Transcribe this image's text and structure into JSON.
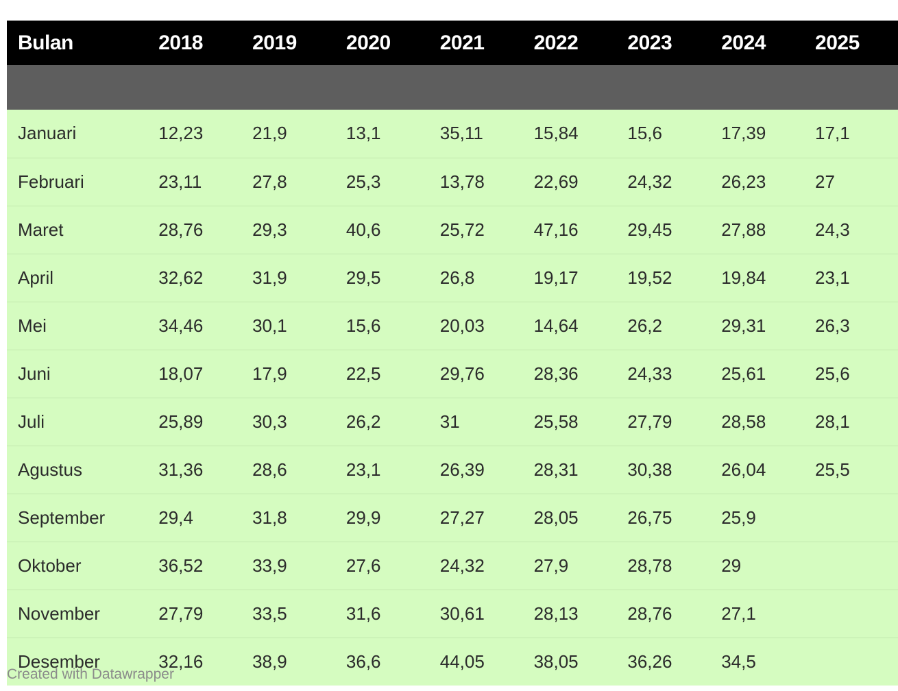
{
  "chart_data": {
    "type": "table",
    "columns": [
      "Bulan",
      "2018",
      "2019",
      "2020",
      "2021",
      "2022",
      "2023",
      "2024",
      "2025"
    ],
    "rows": [
      [
        "Januari",
        "12,23",
        "21,9",
        "13,1",
        "35,11",
        "15,84",
        "15,6",
        "17,39",
        "17,1"
      ],
      [
        "Februari",
        "23,11",
        "27,8",
        "25,3",
        "13,78",
        "22,69",
        "24,32",
        "26,23",
        "27"
      ],
      [
        "Maret",
        "28,76",
        "29,3",
        "40,6",
        "25,72",
        "47,16",
        "29,45",
        "27,88",
        "24,3"
      ],
      [
        "April",
        "32,62",
        "31,9",
        "29,5",
        "26,8",
        "19,17",
        "19,52",
        "19,84",
        "23,1"
      ],
      [
        "Mei",
        "34,46",
        "30,1",
        "15,6",
        "20,03",
        "14,64",
        "26,2",
        "29,31",
        "26,3"
      ],
      [
        "Juni",
        "18,07",
        "17,9",
        "22,5",
        "29,76",
        "28,36",
        "24,33",
        "25,61",
        "25,6"
      ],
      [
        "Juli",
        "25,89",
        "30,3",
        "26,2",
        "31",
        "25,58",
        "27,79",
        "28,58",
        "28,1"
      ],
      [
        "Agustus",
        "31,36",
        "28,6",
        "23,1",
        "26,39",
        "28,31",
        "30,38",
        "26,04",
        "25,5"
      ],
      [
        "September",
        "29,4",
        "31,8",
        "29,9",
        "27,27",
        "28,05",
        "26,75",
        "25,9",
        ""
      ],
      [
        "Oktober",
        "36,52",
        "33,9",
        "27,6",
        "24,32",
        "27,9",
        "28,78",
        "29",
        ""
      ],
      [
        "November",
        "27,79",
        "33,5",
        "31,6",
        "30,61",
        "28,13",
        "28,76",
        "27,1",
        ""
      ],
      [
        "Desember",
        "32,16",
        "38,9",
        "36,6",
        "44,05",
        "38,05",
        "36,26",
        "34,5",
        ""
      ]
    ]
  },
  "footer": {
    "credit": "Created with Datawrapper"
  },
  "colors": {
    "header_bg": "#000000",
    "header_text": "#ffffff",
    "row_bg": "#d5fcc0",
    "row_divider": "#c2e8ae",
    "cell_text": "#2b2b2b",
    "footer_text": "#8a8a8a"
  }
}
